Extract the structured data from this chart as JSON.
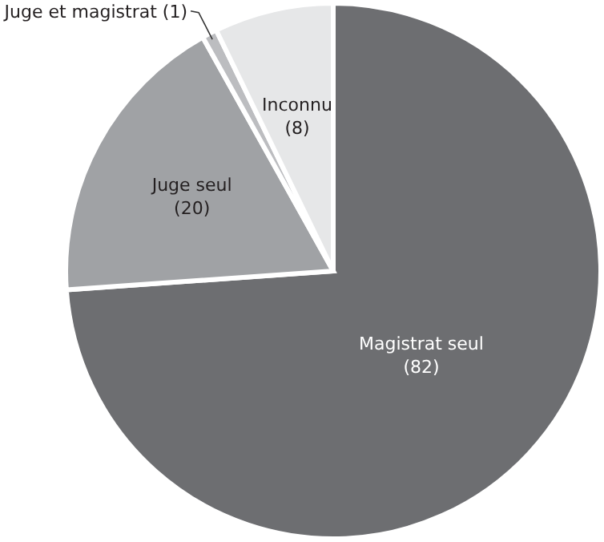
{
  "chart_data": {
    "type": "pie",
    "categories": [
      "Magistrat seul",
      "Juge seul",
      "Juge et magistrat",
      "Inconnu"
    ],
    "values": [
      82,
      20,
      1,
      8
    ],
    "value_labels": [
      "(82)",
      "(20)",
      "(1)",
      "(8)"
    ],
    "colors": [
      "#6d6e71",
      "#a0a2a5",
      "#bcbdc0",
      "#e6e7e8"
    ]
  }
}
